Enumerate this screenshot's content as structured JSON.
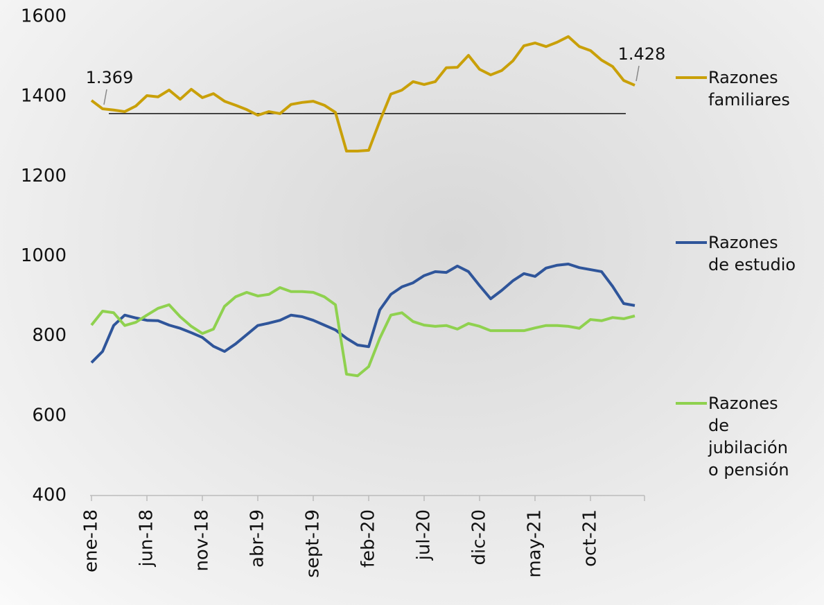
{
  "chart_data": {
    "type": "line",
    "categories": [
      "ene-18",
      null,
      null,
      null,
      null,
      "jun-18",
      null,
      null,
      null,
      null,
      "nov-18",
      null,
      null,
      null,
      null,
      "abr-19",
      null,
      null,
      null,
      null,
      "sept-19",
      null,
      null,
      null,
      null,
      "feb-20",
      null,
      null,
      null,
      null,
      "jul-20",
      null,
      null,
      null,
      null,
      "dic-20",
      null,
      null,
      null,
      null,
      "may-21",
      null,
      null,
      null,
      null,
      "oct-21",
      null,
      null,
      null,
      null
    ],
    "ylim": [
      400,
      1600
    ],
    "yticks": [
      400,
      600,
      800,
      1000,
      1200,
      1400,
      1600
    ],
    "reference_line": 1357,
    "series": [
      {
        "name": "Razones familiares",
        "color": "#c9a009",
        "values": [
          1390,
          1369,
          1366,
          1362,
          1376,
          1402,
          1399,
          1416,
          1393,
          1418,
          1397,
          1407,
          1388,
          1378,
          1367,
          1353,
          1362,
          1357,
          1380,
          1385,
          1388,
          1378,
          1360,
          1263,
          1263,
          1265,
          1338,
          1406,
          1416,
          1437,
          1430,
          1437,
          1472,
          1473,
          1503,
          1468,
          1454,
          1465,
          1489,
          1527,
          1534,
          1525,
          1536,
          1550,
          1525,
          1515,
          1491,
          1475,
          1440,
          1428
        ],
        "value_labels": [
          null,
          "1.369",
          null,
          null,
          null,
          null,
          null,
          null,
          null,
          null,
          null,
          null,
          null,
          null,
          null,
          null,
          null,
          null,
          null,
          null,
          null,
          null,
          null,
          null,
          null,
          null,
          null,
          null,
          null,
          null,
          null,
          null,
          null,
          null,
          null,
          null,
          null,
          null,
          null,
          null,
          null,
          null,
          null,
          null,
          null,
          null,
          null,
          null,
          null,
          "1.428"
        ]
      },
      {
        "name": "Razones de estudio",
        "color": "#2f559a",
        "values": [
          733,
          761,
          826,
          852,
          845,
          839,
          838,
          827,
          819,
          808,
          796,
          774,
          761,
          780,
          803,
          826,
          832,
          839,
          852,
          848,
          839,
          827,
          815,
          794,
          777,
          773,
          865,
          904,
          923,
          933,
          951,
          961,
          959,
          975,
          961,
          926,
          893,
          914,
          938,
          956,
          949,
          970,
          977,
          980,
          971,
          966,
          961,
          924,
          881,
          876
        ]
      },
      {
        "name": "Razones de jubilación o pensión",
        "color": "#8fd14f",
        "values": [
          827,
          862,
          858,
          826,
          834,
          852,
          869,
          878,
          848,
          824,
          806,
          817,
          874,
          898,
          909,
          900,
          904,
          921,
          911,
          911,
          909,
          898,
          878,
          704,
          700,
          723,
          794,
          852,
          858,
          836,
          827,
          824,
          826,
          817,
          831,
          824,
          813,
          813,
          813,
          813,
          820,
          826,
          826,
          824,
          819,
          841,
          838,
          846,
          843,
          850
        ]
      }
    ]
  }
}
